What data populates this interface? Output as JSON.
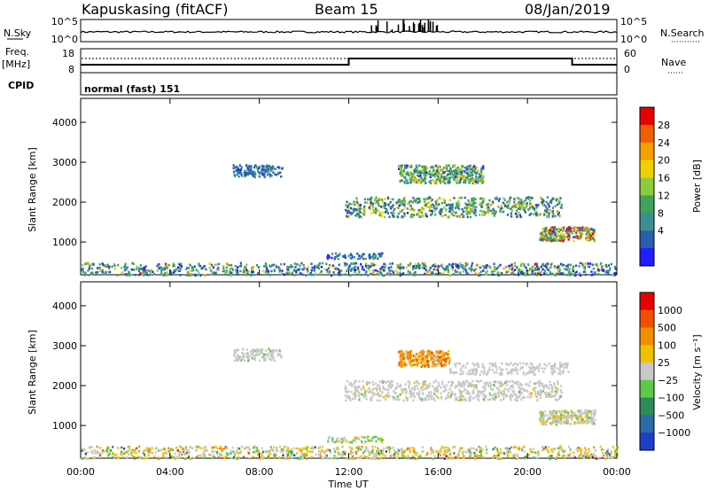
{
  "header": {
    "station": "Kapuskasing (fitACF)",
    "beam": "Beam 15",
    "date": "08/Jan/2019"
  },
  "noise_panel": {
    "left_label": "N.Sky",
    "left_ticks": [
      "10^5",
      "10^0"
    ],
    "right_ticks": [
      "10^5",
      "10^0"
    ],
    "right_label": "N.Search",
    "right_label_style": "dotted"
  },
  "freq_panel": {
    "left_label_top": "Freq.",
    "left_label_unit": "[MHz]",
    "left_ticks": [
      "18",
      "8"
    ],
    "right_ticks": [
      "60",
      "0"
    ],
    "right_label": "Nave",
    "right_label_style": "dotted"
  },
  "cpid_panel": {
    "label": "CPID",
    "mode": "normal (fast) 151"
  },
  "chart_data": [
    {
      "type": "heatmap",
      "title": "",
      "ylabel": "Slant Range [km]",
      "ylim": [
        180,
        4600
      ],
      "yticks": [
        "4000",
        "3000",
        "2000",
        "1000"
      ],
      "colorbar": {
        "label": "Power [dB]",
        "ticks": [
          "28",
          "24",
          "20",
          "16",
          "12",
          "8",
          "4"
        ],
        "range": [
          0,
          32
        ],
        "colors": [
          "#1f1fff",
          "#2a5fb0",
          "#3a9090",
          "#3fa35a",
          "#8ccb3c",
          "#f0d000",
          "#f4a000",
          "#f06000",
          "#e80000"
        ]
      }
    },
    {
      "type": "heatmap",
      "title": "",
      "ylabel": "Slant Range [km]",
      "ylim": [
        180,
        4600
      ],
      "yticks": [
        "4000",
        "3000",
        "2000",
        "1000"
      ],
      "colorbar": {
        "label": "Velocity [m s⁻¹]",
        "ticks": [
          "1000",
          "500",
          "100",
          "25",
          "−25",
          "−100",
          "−500",
          "−1000"
        ],
        "colors": [
          "#1f3fc8",
          "#2a6aa8",
          "#2f8a5a",
          "#5fc84a",
          "#c8c8c8",
          "#f0c000",
          "#f09000",
          "#f05000",
          "#e80000"
        ]
      }
    }
  ],
  "time_axis": {
    "label": "Time UT",
    "ticks": [
      "00:00",
      "04:00",
      "08:00",
      "12:00",
      "16:00",
      "20:00",
      "00:00"
    ],
    "range_hours": [
      0,
      24
    ]
  },
  "frequency_steps": [
    {
      "start": 0,
      "end": 12,
      "level": "low"
    },
    {
      "start": 12,
      "end": 22,
      "level": "high"
    },
    {
      "start": 22,
      "end": 24,
      "level": "low"
    }
  ]
}
